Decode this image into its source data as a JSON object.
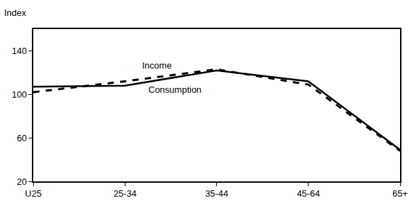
{
  "chart_data": {
    "type": "line",
    "y_label": "Index",
    "categories": [
      "U25",
      "25-34",
      "35-44",
      "45-64",
      "65+"
    ],
    "series": [
      {
        "name": "Income",
        "color": "#000000",
        "line_style": "solid",
        "values": [
          107,
          108,
          122,
          112,
          49
        ]
      },
      {
        "name": "Consumption",
        "color": "#000000",
        "line_style": "dash",
        "values": [
          102,
          112,
          123,
          109,
          48
        ]
      }
    ],
    "ylim": [
      20,
      160
    ],
    "yticks": [
      20,
      60,
      100,
      140
    ],
    "grid": false
  }
}
